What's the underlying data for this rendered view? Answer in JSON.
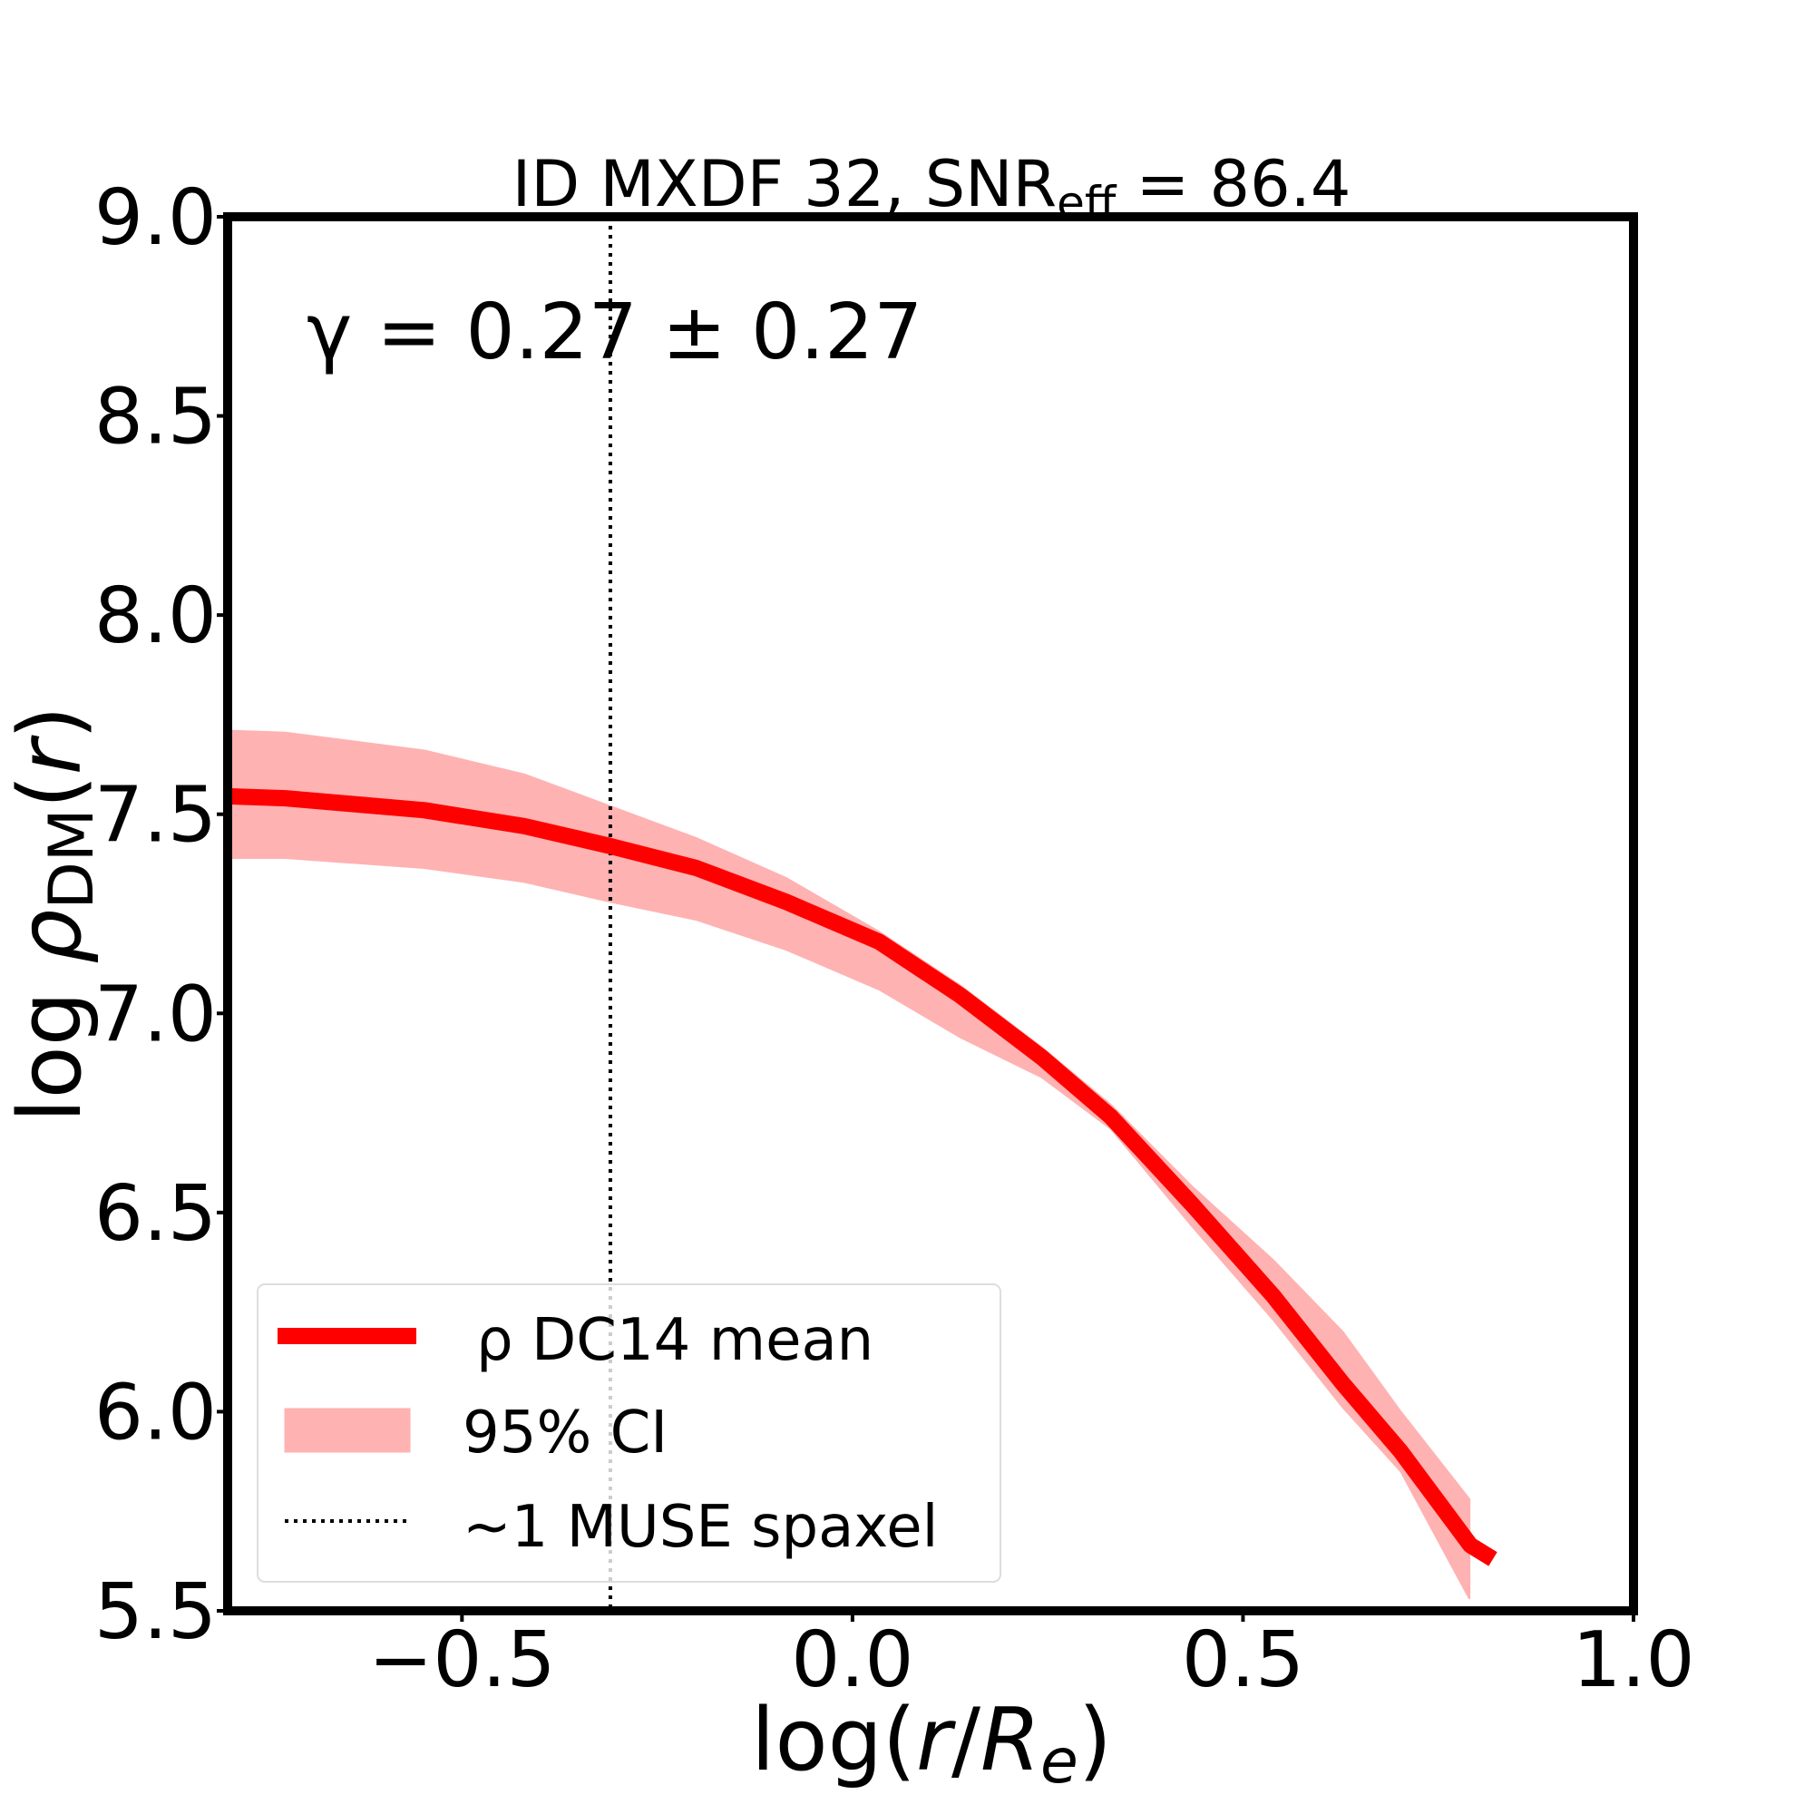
{
  "chart_data": {
    "type": "line",
    "title": {
      "main": "ID MXDF 32, SNR",
      "sub": "eff",
      "rest": " = 86.4"
    },
    "xlabel": {
      "pre": "log(",
      "r": "r",
      "slash": "/",
      "R": "R",
      "sub": "e",
      "post": ")"
    },
    "ylabel": {
      "pre": "log ",
      "rho": "ρ",
      "sub": "DM",
      "open": "(",
      "r": "r",
      "close": ")"
    },
    "annotation": "γ = 0.27 ± 0.27",
    "xlim": [
      -0.8,
      1.0
    ],
    "ylim": [
      5.5,
      9.0
    ],
    "xticks": [
      {
        "value": -0.5,
        "label": "−0.5"
      },
      {
        "value": 0,
        "label": "0.0"
      },
      0.5,
      {
        "value": 1.0,
        "label": "1.0"
      }
    ],
    "yticks": [
      5.5,
      {
        "value": 6.0,
        "label": "6.0"
      },
      6.5,
      {
        "value": 7.0,
        "label": "7.0"
      },
      7.5,
      {
        "value": 8.0,
        "label": "8.0"
      },
      8.5,
      {
        "value": 9.0,
        "label": "9.0"
      }
    ],
    "series": [
      {
        "name": "ρ DC14 mean",
        "color": "#ff0000",
        "x": [
          -0.8,
          -0.726,
          -0.548,
          -0.42,
          -0.31,
          -0.2,
          -0.085,
          0.034,
          0.138,
          0.242,
          0.331,
          0.435,
          0.539,
          0.628,
          0.702,
          0.791,
          0.82
        ],
        "values": [
          7.545,
          7.54,
          7.51,
          7.47,
          7.42,
          7.365,
          7.28,
          7.18,
          7.045,
          6.89,
          6.74,
          6.52,
          6.29,
          6.07,
          5.9,
          5.665,
          5.63
        ]
      }
    ],
    "band": {
      "name": "95% CI",
      "color": "#ffb2b2",
      "x": [
        -0.8,
        -0.726,
        -0.548,
        -0.42,
        -0.31,
        -0.2,
        -0.085,
        0.034,
        0.138,
        0.242,
        0.331,
        0.435,
        0.539,
        0.628,
        0.702,
        0.79
      ],
      "upper": [
        7.71,
        7.705,
        7.66,
        7.6,
        7.52,
        7.44,
        7.34,
        7.205,
        7.07,
        6.915,
        6.77,
        6.565,
        6.38,
        6.2,
        6.0,
        5.78
      ],
      "lower": [
        7.39,
        7.39,
        7.365,
        7.33,
        7.28,
        7.235,
        7.16,
        7.06,
        6.94,
        6.84,
        6.71,
        6.465,
        6.23,
        6.01,
        5.85,
        5.53
      ]
    },
    "vline": {
      "name": "~1 MUSE spaxel",
      "x": -0.31,
      "color": "#000000"
    },
    "legend": "lower left"
  }
}
